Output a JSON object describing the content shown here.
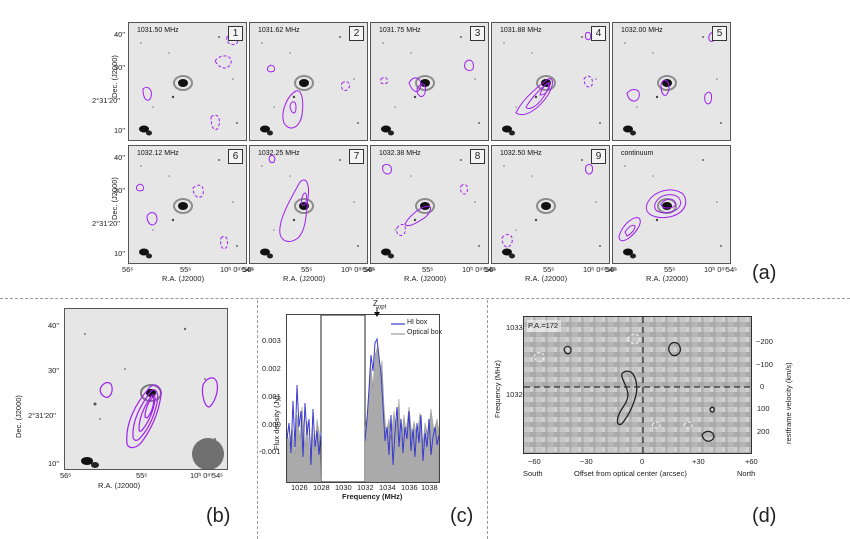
{
  "panel_a": {
    "label": "(a)",
    "panels": [
      {
        "freq": "1031.50 MHz",
        "num": "1"
      },
      {
        "freq": "1031.62 MHz",
        "num": "2"
      },
      {
        "freq": "1031.75 MHz",
        "num": "3"
      },
      {
        "freq": "1031.88 MHz",
        "num": "4"
      },
      {
        "freq": "1032.00 MHz",
        "num": "5"
      },
      {
        "freq": "1032.12 MHz",
        "num": "6"
      },
      {
        "freq": "1032.25 MHz",
        "num": "7"
      },
      {
        "freq": "1032.38 MHz",
        "num": "8"
      },
      {
        "freq": "1032.50 MHz",
        "num": "9"
      },
      {
        "freq": "continuum",
        "num": ""
      }
    ],
    "dec_ticks": [
      "40\"",
      "30\"",
      "2°31'20\"",
      "10\""
    ],
    "ra_ticks": [
      "56ˢ",
      "55ˢ",
      "10ʰ 0ᵐ54ˢ"
    ],
    "ylabel": "Dec. (J2000)",
    "xlabel": "R.A. (J2000)"
  },
  "panel_b": {
    "label": "(b)",
    "dec_ticks": [
      "40\"",
      "30\"",
      "2°31'20\"",
      "10\""
    ],
    "ra_ticks": [
      "56ˢ",
      "55ˢ",
      "10ʰ 0ᵐ54ˢ"
    ],
    "ylabel": "Dec. (J2000)",
    "xlabel": "R.A. (J2000)"
  },
  "panel_c": {
    "label": "(c)",
    "z_label": "Z",
    "z_sub": "opt",
    "legend": [
      {
        "name": "HI box",
        "color": "#3a3acc"
      },
      {
        "name": "Optical box",
        "color": "#999999"
      }
    ],
    "yticks": [
      "0.003",
      "0.002",
      "0.001",
      "0.000",
      "-0.001"
    ],
    "xticks": [
      "1026",
      "1028",
      "1030",
      "1032",
      "1034",
      "1036",
      "1038"
    ],
    "ylabel": "Flux density (Jy)",
    "xlabel": "Frequency (MHz)"
  },
  "panel_d": {
    "label": "(d)",
    "pa": "P.A.=172",
    "yticks_left": [
      "1033",
      "1032"
    ],
    "yticks_right": [
      "−200",
      "−100",
      "0",
      "100",
      "200"
    ],
    "xticks": [
      "−60",
      "−30",
      "0",
      "+30",
      "+60"
    ],
    "south": "South",
    "north": "North",
    "xlabel": "Offset from optical center (arcsec)",
    "ylabel_left": "Frequency (MHz)",
    "ylabel_right": "restframe velocity (km/s)"
  },
  "colors": {
    "contour": "#a020f0",
    "hi_line": "#3a3acc",
    "optical_fill": "#aaaaaa",
    "pv_contour": "#222222"
  }
}
